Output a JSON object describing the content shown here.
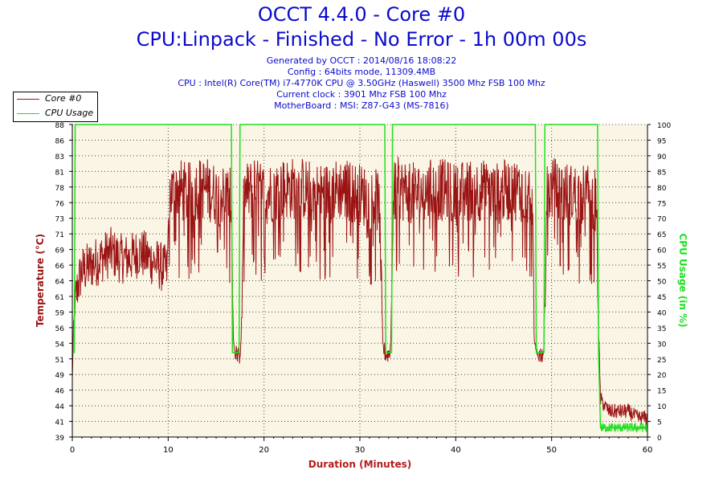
{
  "chart_title": "OCCT 4.4.0 - Core #0",
  "chart_subtitle": "CPU:Linpack - Finished - No Error - 1h 00m 00s",
  "info_lines": [
    "Generated by OCCT : 2014/08/16 18:08:22",
    "Config : 64bits mode, 11309.4MB",
    "CPU : Intel(R) Core(TM) i7-4770K CPU @ 3.50GHz (Haswell) 3500 Mhz FSB 100 Mhz",
    "Current clock : 3901 Mhz FSB 100 Mhz",
    "MotherBoard : MSI: Z87-G43 (MS-7816)"
  ],
  "colors": {
    "title": "#0a0acd",
    "temperature": "#9b1414",
    "cpu_usage": "#1ee11e",
    "plot_bg": "#fbf5e6",
    "axis_x_label": "#b41e1e"
  },
  "chart_data": {
    "type": "line",
    "title": "OCCT 4.4.0 - Core #0",
    "subtitle": "CPU:Linpack - Finished - No Error - 1h 00m 00s",
    "xlabel": "Duration (Minutes)",
    "ylabel_left": "Temperature (°C)",
    "ylabel_right": "CPU Usage (in %)",
    "xlim": [
      0,
      60
    ],
    "ylim_left": [
      39,
      88
    ],
    "ylim_right": [
      0,
      100
    ],
    "x_ticks": [
      "0",
      "10",
      "20",
      "30",
      "40",
      "50",
      "60"
    ],
    "y_left_ticks": [
      "39",
      "41",
      "44",
      "46",
      "49",
      "51",
      "54",
      "56",
      "59",
      "61",
      "64",
      "66",
      "69",
      "71",
      "73",
      "76",
      "78",
      "81",
      "83",
      "86",
      "88"
    ],
    "y_right_ticks": [
      "0",
      "5",
      "10",
      "15",
      "20",
      "25",
      "30",
      "35",
      "40",
      "45",
      "50",
      "55",
      "60",
      "65",
      "70",
      "75",
      "80",
      "85",
      "90",
      "95",
      "100"
    ],
    "grid": true,
    "legend": "top-left",
    "series": [
      {
        "name": "Core #0",
        "axis": "left",
        "x": [
          0,
          0.1,
          0.3,
          0.6,
          1,
          2,
          3,
          4,
          5,
          6,
          7,
          8,
          9,
          9.9,
          10.1,
          11,
          12,
          13,
          14,
          15,
          16,
          16.6,
          16.8,
          17,
          17.3,
          17.6,
          17.9,
          19,
          20,
          22,
          24,
          26,
          28,
          30,
          32,
          32.4,
          32.7,
          33,
          33.2,
          33.5,
          34,
          36,
          38,
          40,
          42,
          44,
          46,
          48,
          48.2,
          48.5,
          49,
          49.2,
          49.5,
          50,
          52,
          54,
          54.7,
          54.9,
          55.1,
          55.5,
          56,
          57,
          58,
          59,
          60
        ],
        "values": [
          48,
          55,
          60,
          63,
          65,
          66,
          67,
          68,
          67,
          67,
          68,
          67,
          66,
          65,
          77,
          78,
          77,
          78,
          78,
          77,
          77,
          76,
          54,
          52,
          52,
          52,
          77,
          78,
          77,
          78,
          78,
          77,
          78,
          77,
          76,
          53,
          52,
          52,
          53,
          77,
          78,
          77,
          78,
          77,
          78,
          77,
          78,
          77,
          53,
          52,
          52,
          53,
          77,
          78,
          77,
          77,
          76,
          55,
          45,
          44,
          43,
          43,
          43,
          42,
          42
        ]
      },
      {
        "name": "CPU Usage",
        "axis": "right",
        "x": [
          0,
          0.2,
          0.3,
          16.6,
          16.7,
          17.4,
          17.5,
          32.6,
          32.7,
          33.3,
          33.4,
          48.3,
          48.4,
          49.2,
          49.3,
          54.8,
          54.9,
          55.1,
          60
        ],
        "values": [
          27,
          27,
          100,
          100,
          27,
          27,
          100,
          100,
          27,
          27,
          100,
          100,
          27,
          27,
          100,
          100,
          27,
          3,
          3
        ]
      }
    ]
  }
}
